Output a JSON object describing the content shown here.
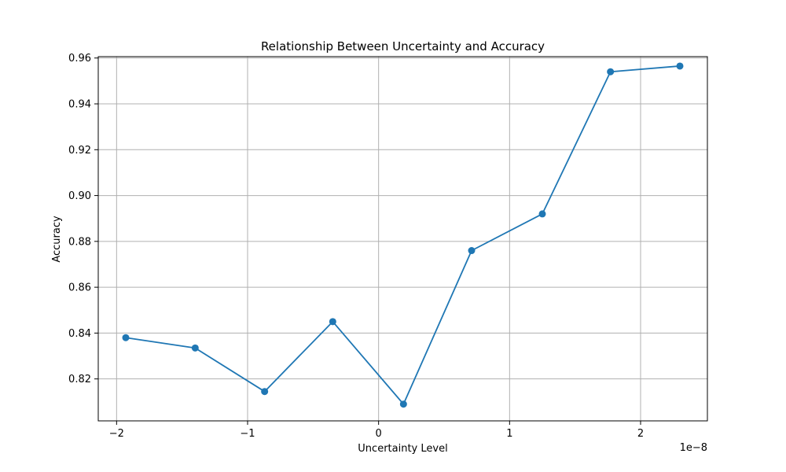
{
  "chart_data": {
    "type": "line",
    "title": "Relationship Between Uncertainty and Accuracy",
    "xlabel": "Uncertainty Level",
    "ylabel": "Accuracy",
    "x_offset_text": "1e−8",
    "x_ticks": [
      {
        "value": -2e-08,
        "label": "−2"
      },
      {
        "value": -1e-08,
        "label": "−1"
      },
      {
        "value": 0,
        "label": "0"
      },
      {
        "value": 1e-08,
        "label": "1"
      },
      {
        "value": 2e-08,
        "label": "2"
      }
    ],
    "y_ticks": [
      {
        "value": 0.82,
        "label": "0.82"
      },
      {
        "value": 0.84,
        "label": "0.84"
      },
      {
        "value": 0.86,
        "label": "0.86"
      },
      {
        "value": 0.88,
        "label": "0.88"
      },
      {
        "value": 0.9,
        "label": "0.90"
      },
      {
        "value": 0.92,
        "label": "0.92"
      },
      {
        "value": 0.94,
        "label": "0.94"
      },
      {
        "value": 0.96,
        "label": "0.96"
      }
    ],
    "xlim": [
      -2.14e-08,
      2.51e-08
    ],
    "ylim": [
      0.8017,
      0.9606
    ],
    "grid": true,
    "marker": "circle",
    "color": "#1f77b4",
    "series": [
      {
        "x": [
          -1.93e-08,
          -1.4e-08,
          -8.7e-09,
          -3.5e-09,
          1.9e-09,
          7.1e-09,
          1.25e-08,
          1.77e-08,
          2.3e-08
        ],
        "y": [
          0.838,
          0.8335,
          0.8145,
          0.845,
          0.809,
          0.876,
          0.892,
          0.954,
          0.9565
        ]
      }
    ]
  }
}
